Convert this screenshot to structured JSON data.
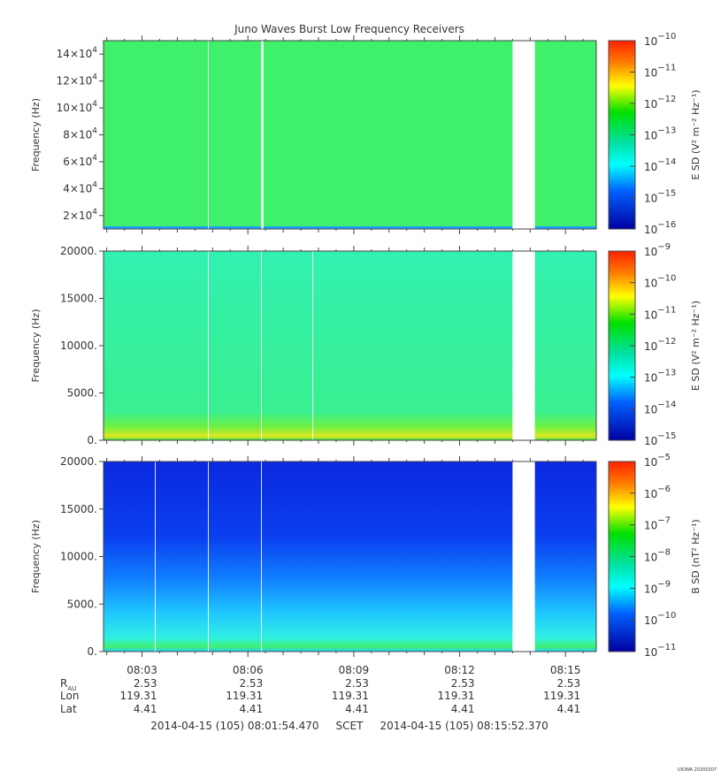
{
  "chart_data": {
    "type": "heatmap",
    "title": "Juno Waves Burst Low Frequency Receivers",
    "time_axis": {
      "range": [
        "08:01:54.470",
        "08:15:52.370"
      ],
      "tick_labels": [
        "08:03",
        "08:06",
        "08:09",
        "08:12",
        "08:15"
      ],
      "tick_minutes": [
        3,
        6,
        9,
        12,
        15
      ]
    },
    "gaps": [
      {
        "start": "08:13:30",
        "end": "08:14:08"
      }
    ],
    "panels": [
      {
        "ylabel": "Frequency (Hz)",
        "yrange": [
          10000,
          150000
        ],
        "yticks": [
          {
            "value": 20000,
            "mant": "2×10",
            "exp": "4"
          },
          {
            "value": 40000,
            "mant": "4×10",
            "exp": "4"
          },
          {
            "value": 60000,
            "mant": "6×10",
            "exp": "4"
          },
          {
            "value": 80000,
            "mant": "8×10",
            "exp": "4"
          },
          {
            "value": 100000,
            "mant": "10×10",
            "exp": "4"
          },
          {
            "value": 120000,
            "mant": "12×10",
            "exp": "4"
          },
          {
            "value": 140000,
            "mant": "14×10",
            "exp": "4"
          }
        ],
        "colorbar_label": "E SD (V² m⁻² Hz⁻¹)",
        "colorbar_exponents": [
          -10,
          -11,
          -12,
          -13,
          -14,
          -15,
          -16
        ],
        "base_color": "#3ef06a",
        "profile": "flat"
      },
      {
        "ylabel": "Frequency (Hz)",
        "yrange": [
          0,
          20000
        ],
        "yticks": [
          {
            "value": 0,
            "label": "0."
          },
          {
            "value": 5000,
            "label": "5000."
          },
          {
            "value": 10000,
            "label": "10000."
          },
          {
            "value": 15000,
            "label": "15000."
          },
          {
            "value": 20000,
            "label": "20000."
          }
        ],
        "colorbar_label": "E SD (V² m⁻² Hz⁻¹)",
        "colorbar_exponents": [
          -9,
          -10,
          -11,
          -12,
          -13,
          -14,
          -15
        ],
        "base_color": "#2ff0a8",
        "profile": "low-freq-band"
      },
      {
        "ylabel": "Frequency (Hz)",
        "yrange": [
          0,
          20000
        ],
        "yticks": [
          {
            "value": 0,
            "label": "0."
          },
          {
            "value": 5000,
            "label": "5000."
          },
          {
            "value": 10000,
            "label": "10000."
          },
          {
            "value": 15000,
            "label": "15000."
          },
          {
            "value": 20000,
            "label": "20000."
          }
        ],
        "colorbar_label": "B SD (nT² Hz⁻¹)",
        "colorbar_exponents": [
          -5,
          -6,
          -7,
          -8,
          -9,
          -10,
          -11
        ],
        "base_color": "#1030e0",
        "profile": "gradient-blue"
      }
    ],
    "ephemeris": {
      "row_labels": [
        "R",
        "Lon",
        "Lat"
      ],
      "r_subscript": "AU",
      "R": [
        "2.53",
        "2.53",
        "2.53",
        "2.53",
        "2.53"
      ],
      "Lon": [
        "119.31",
        "119.31",
        "119.31",
        "119.31",
        "119.31"
      ],
      "Lat": [
        "4.41",
        "4.41",
        "4.41",
        "4.41",
        "4.41"
      ]
    },
    "time_range_label": "2014-04-15 (105) 08:01:54.470     SCET     2014-04-15 (105) 08:15:52.370",
    "credit": "UIOWA 20200307"
  }
}
